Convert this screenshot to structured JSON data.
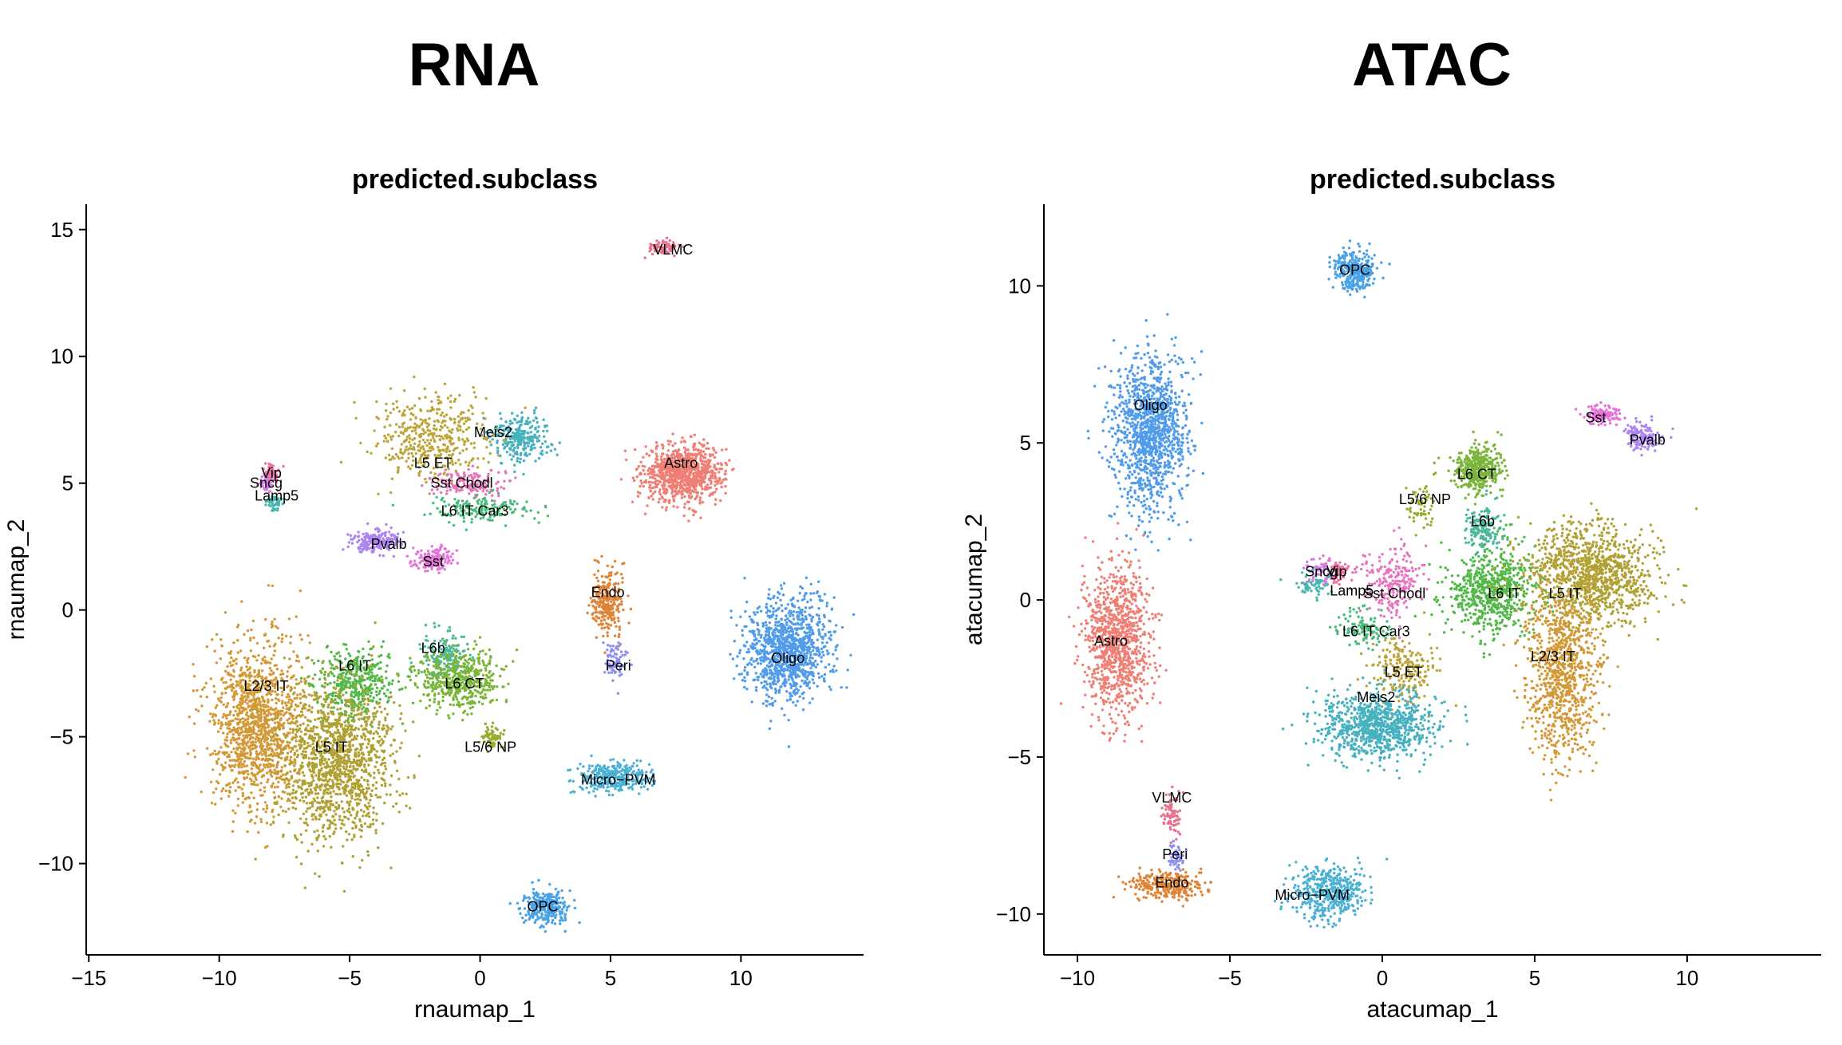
{
  "panels": [
    {
      "heading": "RNA",
      "colors": {
        "Astro": "#ef7f74",
        "Endo": "#df8436",
        "L2/3 IT": "#d39937",
        "L5 ET": "#bca437",
        "L5 IT": "#b0a133",
        "L5/6 NP": "#98ad2f",
        "L6 CT": "#7ab53a",
        "L6 IT": "#52b948",
        "L6 IT Car3": "#49bb7a",
        "L6b": "#4cb89a",
        "Lamp5": "#48b7b1",
        "Meis2": "#46b1bf",
        "Micro−PVM": "#4ab0d4",
        "OPC": "#4aa2e6",
        "Oligo": "#509ceb",
        "Peri": "#8a8ff0",
        "Pvalb": "#ad84f0",
        "Sncg": "#d47be6",
        "Sst": "#e572d8",
        "Sst Chodl": "#e775bd",
        "Vip": "#ec73a4",
        "VLMC": "#e8708a"
      },
      "chart_data": {
        "type": "scatter",
        "title": "predicted.subclass",
        "xlabel": "rnaumap_1",
        "ylabel": "rnaumap_2",
        "xlim": [
          -15.1,
          14.7
        ],
        "ylim": [
          -13.6,
          16.0
        ],
        "xticks": [
          -15,
          -10,
          -5,
          0,
          5,
          10
        ],
        "yticks": [
          -10,
          -5,
          0,
          5,
          10,
          15
        ],
        "clusters": [
          {
            "label": "VLMC",
            "x": 7.0,
            "y": 14.3,
            "sx": 0.45,
            "sy": 0.2,
            "n": 70
          },
          {
            "label": "Astro",
            "x": 7.8,
            "y": 5.4,
            "sx": 1.0,
            "sy": 0.75,
            "n": 900
          },
          {
            "label": "Meis2",
            "x": 1.5,
            "y": 6.8,
            "sx": 0.8,
            "sy": 0.6,
            "n": 280
          },
          {
            "label": "L5 ET",
            "x": -1.8,
            "y": 6.8,
            "sx": 1.5,
            "sy": 1.1,
            "n": 420
          },
          {
            "label": "Sst Chodl",
            "x": -0.5,
            "y": 5.0,
            "sx": 1.0,
            "sy": 0.35,
            "n": 150
          },
          {
            "label": "L6 IT Car3",
            "x": 0.0,
            "y": 4.0,
            "sx": 1.2,
            "sy": 0.35,
            "n": 170
          },
          {
            "label": "Vip",
            "x": -8.0,
            "y": 5.4,
            "sx": 0.2,
            "sy": 0.25,
            "n": 60
          },
          {
            "label": "Sncg",
            "x": -8.2,
            "y": 5.0,
            "sx": 0.2,
            "sy": 0.2,
            "n": 40
          },
          {
            "label": "Lamp5",
            "x": -7.9,
            "y": 4.2,
            "sx": 0.2,
            "sy": 0.2,
            "n": 50
          },
          {
            "label": "Pvalb",
            "x": -4.0,
            "y": 2.7,
            "sx": 0.6,
            "sy": 0.3,
            "n": 200
          },
          {
            "label": "Sst",
            "x": -1.8,
            "y": 2.0,
            "sx": 0.5,
            "sy": 0.3,
            "n": 160
          },
          {
            "label": "Endo",
            "x": 4.9,
            "y": 0.3,
            "sx": 0.4,
            "sy": 0.9,
            "n": 260
          },
          {
            "label": "Peri",
            "x": 5.2,
            "y": -2.0,
            "sx": 0.3,
            "sy": 0.5,
            "n": 70
          },
          {
            "label": "Oligo",
            "x": 11.8,
            "y": -1.6,
            "sx": 1.1,
            "sy": 1.3,
            "n": 1100
          },
          {
            "label": "L6b",
            "x": -1.4,
            "y": -1.8,
            "sx": 0.6,
            "sy": 0.6,
            "n": 150
          },
          {
            "label": "L6 CT",
            "x": -0.8,
            "y": -2.8,
            "sx": 1.0,
            "sy": 0.8,
            "n": 500
          },
          {
            "label": "L6 IT",
            "x": -4.8,
            "y": -2.9,
            "sx": 1.0,
            "sy": 0.9,
            "n": 420
          },
          {
            "label": "L2/3 IT",
            "x": -8.5,
            "y": -4.5,
            "sx": 1.2,
            "sy": 2.2,
            "n": 1300
          },
          {
            "label": "L5 IT",
            "x": -5.5,
            "y": -6.0,
            "sx": 1.4,
            "sy": 2.0,
            "n": 1300
          },
          {
            "label": "L5/6 NP",
            "x": 0.5,
            "y": -5.0,
            "sx": 0.3,
            "sy": 0.4,
            "n": 60
          },
          {
            "label": "Micro−PVM",
            "x": 5.2,
            "y": -6.6,
            "sx": 1.0,
            "sy": 0.4,
            "n": 320
          },
          {
            "label": "OPC",
            "x": 2.5,
            "y": -11.7,
            "sx": 0.6,
            "sy": 0.5,
            "n": 280
          }
        ],
        "label_positions": [
          {
            "label": "VLMC",
            "x": 7.4,
            "y": 14.2
          },
          {
            "label": "Astro",
            "x": 7.7,
            "y": 5.8
          },
          {
            "label": "Meis2",
            "x": 0.5,
            "y": 7.0
          },
          {
            "label": "L5 ET",
            "x": -1.8,
            "y": 5.8
          },
          {
            "label": "Sst Chodl",
            "x": -0.7,
            "y": 5.0
          },
          {
            "label": "L6 IT Car3",
            "x": -0.2,
            "y": 3.9
          },
          {
            "label": "Vip",
            "x": -8.0,
            "y": 5.4
          },
          {
            "label": "Sncg",
            "x": -8.2,
            "y": 5.0
          },
          {
            "label": "Lamp5",
            "x": -7.8,
            "y": 4.5
          },
          {
            "label": "Pvalb",
            "x": -3.5,
            "y": 2.6
          },
          {
            "label": "Sst",
            "x": -1.8,
            "y": 1.9
          },
          {
            "label": "Endo",
            "x": 4.9,
            "y": 0.7
          },
          {
            "label": "Peri",
            "x": 5.3,
            "y": -2.2
          },
          {
            "label": "Oligo",
            "x": 11.8,
            "y": -1.9
          },
          {
            "label": "L6b",
            "x": -1.8,
            "y": -1.5
          },
          {
            "label": "L6 CT",
            "x": -0.6,
            "y": -2.9
          },
          {
            "label": "L6 IT",
            "x": -4.8,
            "y": -2.2
          },
          {
            "label": "L2/3 IT",
            "x": -8.2,
            "y": -3.0
          },
          {
            "label": "L5 IT",
            "x": -5.7,
            "y": -5.4
          },
          {
            "label": "L5/6 NP",
            "x": 0.4,
            "y": -5.4
          },
          {
            "label": "Micro−PVM",
            "x": 5.3,
            "y": -6.7
          },
          {
            "label": "OPC",
            "x": 2.4,
            "y": -11.7
          }
        ]
      }
    },
    {
      "heading": "ATAC",
      "colors": {
        "Astro": "#ef7f74",
        "Endo": "#df8436",
        "L2/3 IT": "#d39937",
        "L5 ET": "#bca437",
        "L5 IT": "#b0a133",
        "L5/6 NP": "#98ad2f",
        "L6 CT": "#7ab53a",
        "L6 IT": "#52b948",
        "L6 IT Car3": "#49bb7a",
        "L6b": "#4cb89a",
        "Lamp5": "#48b7b1",
        "Meis2": "#46b1bf",
        "Micro−PVM": "#4ab0d4",
        "OPC": "#4aa2e6",
        "Oligo": "#509ceb",
        "Peri": "#8a8ff0",
        "Pvalb": "#ad84f0",
        "Sncg": "#d47be6",
        "Sst": "#e572d8",
        "Sst Chodl": "#e775bd",
        "Vip": "#ec73a4",
        "VLMC": "#e8708a"
      },
      "chart_data": {
        "type": "scatter",
        "title": "predicted.subclass",
        "xlabel": "atacumap_1",
        "ylabel": "atacumap_2",
        "xlim": [
          -11.1,
          14.4
        ],
        "ylim": [
          -11.3,
          12.6
        ],
        "xticks": [
          -10,
          -5,
          0,
          5,
          10
        ],
        "yticks": [
          -10,
          -5,
          0,
          5,
          10
        ],
        "clusters": [
          {
            "label": "OPC",
            "x": -0.9,
            "y": 10.5,
            "sx": 0.45,
            "sy": 0.45,
            "n": 320
          },
          {
            "label": "Oligo",
            "x": -7.6,
            "y": 5.3,
            "sx": 0.8,
            "sy": 1.6,
            "n": 1200
          },
          {
            "label": "Sst",
            "x": 7.2,
            "y": 5.9,
            "sx": 0.4,
            "sy": 0.2,
            "n": 120
          },
          {
            "label": "Pvalb",
            "x": 8.5,
            "y": 5.2,
            "sx": 0.4,
            "sy": 0.3,
            "n": 140
          },
          {
            "label": "L6 CT",
            "x": 3.1,
            "y": 4.2,
            "sx": 0.5,
            "sy": 0.5,
            "n": 400
          },
          {
            "label": "L6b",
            "x": 3.3,
            "y": 2.3,
            "sx": 0.4,
            "sy": 0.5,
            "n": 160
          },
          {
            "label": "L5/6 NP",
            "x": 1.3,
            "y": 3.0,
            "sx": 0.3,
            "sy": 0.5,
            "n": 60
          },
          {
            "label": "Sncg",
            "x": -2.0,
            "y": 0.9,
            "sx": 0.35,
            "sy": 0.25,
            "n": 60
          },
          {
            "label": "Vip",
            "x": -1.4,
            "y": 0.9,
            "sx": 0.3,
            "sy": 0.25,
            "n": 60
          },
          {
            "label": "Lamp5",
            "x": -2.2,
            "y": 0.5,
            "sx": 0.4,
            "sy": 0.25,
            "n": 60
          },
          {
            "label": "Sst Chodl",
            "x": 0.4,
            "y": 0.6,
            "sx": 0.6,
            "sy": 0.7,
            "n": 220
          },
          {
            "label": "L6 IT",
            "x": 3.6,
            "y": 0.3,
            "sx": 1.0,
            "sy": 0.9,
            "n": 650
          },
          {
            "label": "L5 IT",
            "x": 6.8,
            "y": 0.8,
            "sx": 1.4,
            "sy": 1.1,
            "n": 1100
          },
          {
            "label": "L2/3 IT",
            "x": 5.9,
            "y": -2.3,
            "sx": 0.8,
            "sy": 2.0,
            "n": 900
          },
          {
            "label": "L6 IT Car3",
            "x": -0.6,
            "y": -0.9,
            "sx": 0.5,
            "sy": 0.4,
            "n": 120
          },
          {
            "label": "L5 ET",
            "x": 0.7,
            "y": -2.2,
            "sx": 0.7,
            "sy": 0.7,
            "n": 200
          },
          {
            "label": "Meis2",
            "x": -0.2,
            "y": -4.0,
            "sx": 1.2,
            "sy": 0.7,
            "n": 900
          },
          {
            "label": "Astro",
            "x": -8.7,
            "y": -1.3,
            "sx": 0.7,
            "sy": 1.6,
            "n": 1000
          },
          {
            "label": "VLMC",
            "x": -6.9,
            "y": -6.8,
            "sx": 0.2,
            "sy": 0.5,
            "n": 80
          },
          {
            "label": "Peri",
            "x": -6.8,
            "y": -8.2,
            "sx": 0.2,
            "sy": 0.3,
            "n": 50
          },
          {
            "label": "Endo",
            "x": -7.1,
            "y": -9.1,
            "sx": 0.8,
            "sy": 0.3,
            "n": 300
          },
          {
            "label": "Micro−PVM",
            "x": -1.7,
            "y": -9.3,
            "sx": 0.8,
            "sy": 0.55,
            "n": 450
          }
        ],
        "label_positions": [
          {
            "label": "OPC",
            "x": -0.9,
            "y": 10.5
          },
          {
            "label": "Oligo",
            "x": -7.6,
            "y": 6.2
          },
          {
            "label": "Sst",
            "x": 7.0,
            "y": 5.8
          },
          {
            "label": "Pvalb",
            "x": 8.7,
            "y": 5.1
          },
          {
            "label": "L6 CT",
            "x": 3.1,
            "y": 4.0
          },
          {
            "label": "L6b",
            "x": 3.3,
            "y": 2.5
          },
          {
            "label": "L5/6 NP",
            "x": 1.4,
            "y": 3.2
          },
          {
            "label": "Sncg",
            "x": -2.0,
            "y": 0.9
          },
          {
            "label": "Vip",
            "x": -1.5,
            "y": 0.9
          },
          {
            "label": "Lamp5",
            "x": -1.0,
            "y": 0.3
          },
          {
            "label": "Sst Chodl",
            "x": 0.4,
            "y": 0.2
          },
          {
            "label": "L6 IT",
            "x": 4.0,
            "y": 0.2
          },
          {
            "label": "L5 IT",
            "x": 6.0,
            "y": 0.2
          },
          {
            "label": "L2/3 IT",
            "x": 5.6,
            "y": -1.8
          },
          {
            "label": "L6 IT Car3",
            "x": -0.2,
            "y": -1.0
          },
          {
            "label": "L5 ET",
            "x": 0.7,
            "y": -2.3
          },
          {
            "label": "Meis2",
            "x": -0.2,
            "y": -3.1
          },
          {
            "label": "Astro",
            "x": -8.9,
            "y": -1.3
          },
          {
            "label": "VLMC",
            "x": -6.9,
            "y": -6.3
          },
          {
            "label": "Peri",
            "x": -6.8,
            "y": -8.1
          },
          {
            "label": "Endo",
            "x": -6.9,
            "y": -9.0
          },
          {
            "label": "Micro−PVM",
            "x": -2.3,
            "y": -9.4
          }
        ]
      }
    }
  ]
}
